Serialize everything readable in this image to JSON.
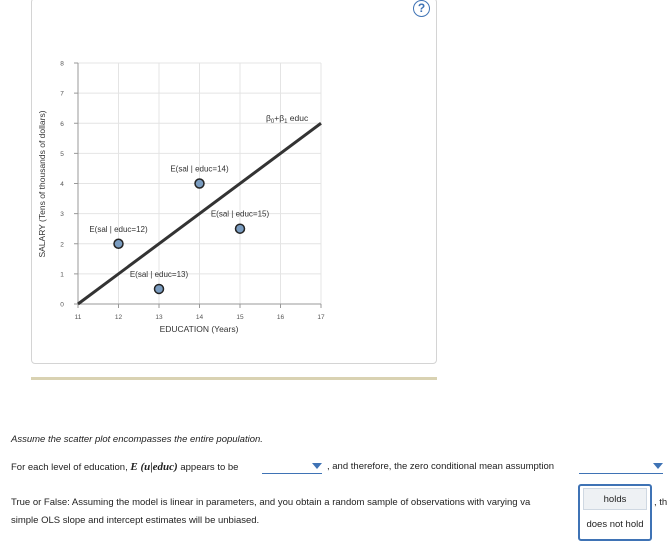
{
  "help": {
    "label": "?"
  },
  "chart_data": {
    "type": "scatter",
    "xlabel": "EDUCATION (Years)",
    "ylabel": "SALARY (Tens of thousands of dollars)",
    "xlim": [
      11,
      17
    ],
    "ylim": [
      0,
      8
    ],
    "x_ticks": [
      "11",
      "12",
      "13",
      "14",
      "15",
      "16",
      "17"
    ],
    "y_ticks": [
      "0",
      "1",
      "2",
      "3",
      "4",
      "5",
      "6",
      "7",
      "8"
    ],
    "grid": true,
    "points": [
      {
        "x": 12,
        "y": 2,
        "label": "E(sal | educ=12)"
      },
      {
        "x": 13,
        "y": 0.5,
        "label": "E(sal | educ=13)"
      },
      {
        "x": 14,
        "y": 4,
        "label": "E(sal | educ=14)"
      },
      {
        "x": 15,
        "y": 2.5,
        "label": "E(sal | educ=15)"
      }
    ],
    "line": {
      "x": [
        11,
        17
      ],
      "y": [
        0,
        6
      ],
      "label_parts": {
        "b0": "β",
        "s0": "0",
        "plus": "+β",
        "s1": "1",
        "tail": " educ"
      }
    },
    "colors": {
      "line": "#333333",
      "point_fill": "#7a9cc0",
      "point_stroke": "#222222",
      "grid": "#e4e4e4"
    }
  },
  "questions": {
    "intro": "Assume the scatter plot encompasses the entire population.",
    "q1": {
      "prefix": "For each level of education, ",
      "math": "E (u|educ)",
      "middle": " appears to be",
      "suffix": ", and therefore, the zero conditional mean assumption",
      "dropdown1_value": "",
      "dropdown2_value": ""
    },
    "q2": {
      "line1": "True or False: Assuming the model is linear in parameters, and you obtain a random sample of observations with varying va",
      "tail": ", th",
      "line2": "simple OLS slope and intercept estimates will be unbiased."
    },
    "menu": {
      "options": [
        "holds",
        "does not hold"
      ]
    }
  }
}
